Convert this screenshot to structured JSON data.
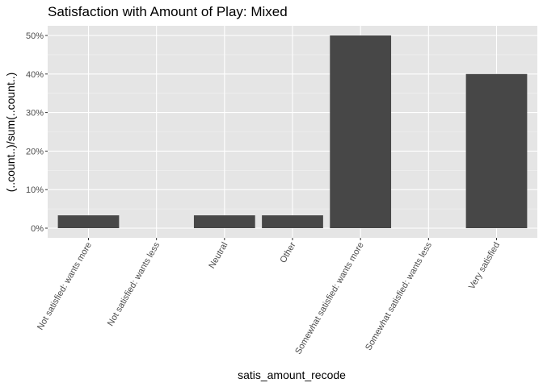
{
  "chart_data": {
    "type": "bar",
    "title": "Satisfaction with Amount of Play: Mixed",
    "xlabel": "satis_amount_recode",
    "ylabel": "(..count..)/sum(..count..)",
    "categories": [
      "Not satisfied: wants more",
      "Not satisfied: wants less",
      "Neutral",
      "Other",
      "Somewhat satisfied: wants more",
      "Somewhat satisfied: wants less",
      "Very satisfied"
    ],
    "values": [
      0.0333,
      0,
      0.0333,
      0.0333,
      0.5,
      0,
      0.4
    ],
    "ylim": [
      0,
      0.5
    ],
    "yticks": [
      0,
      0.1,
      0.2,
      0.3,
      0.4,
      0.5
    ],
    "ytick_labels": [
      "0%",
      "10%",
      "20%",
      "30%",
      "40%",
      "50%"
    ],
    "grid": true,
    "legend": "none",
    "colors": {
      "bar": "#474747",
      "panel": "#e5e5e5",
      "grid_major": "#ffffff",
      "grid_minor": "#f2f2f2",
      "tick": "#333333",
      "text": "#000000",
      "tick_text": "#4d4d4d"
    }
  }
}
